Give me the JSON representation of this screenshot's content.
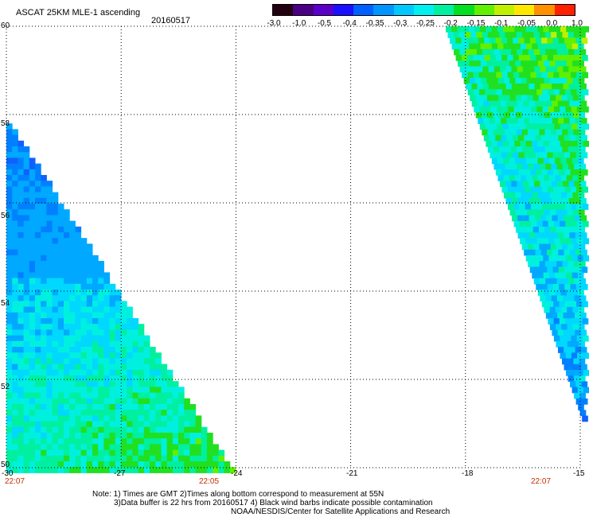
{
  "header": {
    "title": "ASCAT 25KM MLE-1 ascending",
    "date": "20160517"
  },
  "colorbar": {
    "labels": [
      "-3.0",
      "-1.0",
      "-0.5",
      "-0.4",
      "-0.35",
      "-0.3",
      "-0.25",
      "-0.2",
      "-0.15",
      "-0.1",
      "-0.05",
      "0.0",
      "1.0"
    ],
    "colors": [
      "#220010",
      "#4a0082",
      "#5a00c8",
      "#1a10ff",
      "#0060ff",
      "#0094ff",
      "#00c8ff",
      "#00f0f0",
      "#00f0a0",
      "#00e020",
      "#60f000",
      "#c0f000",
      "#ffe800",
      "#ff9000",
      "#ff2000"
    ]
  },
  "axes": {
    "x_labels": [
      "-30",
      "-27",
      "-24",
      "-21",
      "-18",
      "-15"
    ],
    "y_labels": [
      "50",
      "52",
      "54",
      "56",
      "58",
      "60"
    ]
  },
  "pass_times": {
    "left": "22:07",
    "middle": "22:05",
    "right": "22:07"
  },
  "notes": {
    "line1": "Note: 1) Times are GMT 2)Times along bottom correspond to measurement at 55N",
    "line2": "3)Data buffer is 22 hrs from 20160517 4) Black wind barbs indicate possible contamination",
    "line3": "NOAA/NESDIS/Center for Satellite Applications and Research"
  }
}
